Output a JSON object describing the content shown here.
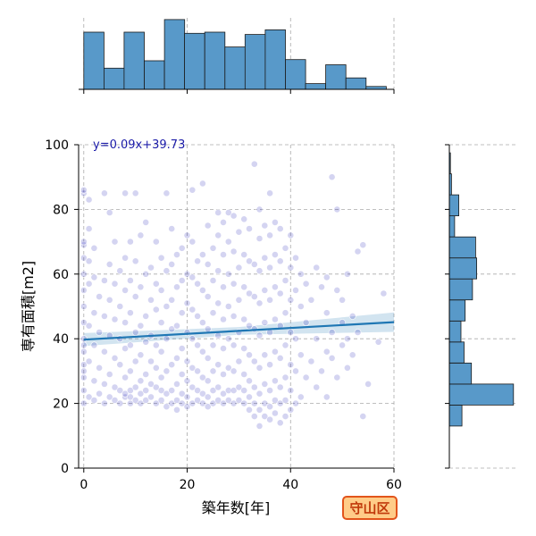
{
  "chart_data": {
    "type": "scatter",
    "title": "",
    "xlabel": "築年数[年]",
    "ylabel": "専有面積[m2]",
    "xlim": [
      -1,
      60
    ],
    "ylim": [
      0,
      100
    ],
    "xticks": [
      0,
      20,
      40,
      60
    ],
    "yticks": [
      0,
      20,
      40,
      60,
      80,
      100
    ],
    "grid": true,
    "regression": {
      "equation": "y=0.09x+39.73",
      "slope": 0.09,
      "intercept": 39.73,
      "color": "#1f77b4"
    },
    "badge": {
      "text": "守山区",
      "fill": "#ffcc88",
      "border": "#e2541b"
    },
    "point_color": "#0000aa",
    "bar_color": "#5899c9",
    "x_histogram": {
      "bin_edges": [
        0,
        3.9,
        7.8,
        11.7,
        15.6,
        19.5,
        23.4,
        27.3,
        31.2,
        35.1,
        39,
        42.9,
        46.8,
        50.7,
        54.6,
        58.5
      ],
      "counts": [
        100,
        37,
        100,
        50,
        122,
        98,
        100,
        74,
        96,
        104,
        52,
        10,
        43,
        20,
        5
      ]
    },
    "y_histogram": {
      "bin_edges": [
        13,
        19.5,
        26,
        32.5,
        39,
        45.5,
        52,
        58.5,
        65,
        71.5,
        78,
        84.5,
        91,
        97.5,
        100
      ],
      "counts": [
        12,
        61,
        21,
        14,
        11,
        15,
        22,
        26,
        25,
        5,
        9,
        2,
        1,
        0
      ]
    },
    "points": [
      [
        0,
        20
      ],
      [
        0,
        24
      ],
      [
        0,
        28
      ],
      [
        0,
        32
      ],
      [
        0,
        36
      ],
      [
        0,
        40
      ],
      [
        0,
        45
      ],
      [
        0,
        50
      ],
      [
        0,
        55
      ],
      [
        0,
        60
      ],
      [
        0,
        65
      ],
      [
        0,
        69
      ],
      [
        0,
        70
      ],
      [
        0,
        85
      ],
      [
        0,
        86
      ],
      [
        0,
        38
      ],
      [
        0,
        30
      ],
      [
        1,
        22
      ],
      [
        1,
        33
      ],
      [
        1,
        44
      ],
      [
        1,
        57
      ],
      [
        1,
        64
      ],
      [
        1,
        74
      ],
      [
        1,
        83
      ],
      [
        2,
        21
      ],
      [
        2,
        27
      ],
      [
        2,
        38
      ],
      [
        2,
        48
      ],
      [
        2,
        59
      ],
      [
        2,
        68
      ],
      [
        3,
        23
      ],
      [
        3,
        31
      ],
      [
        3,
        42
      ],
      [
        3,
        53
      ],
      [
        4,
        20
      ],
      [
        4,
        26
      ],
      [
        4,
        36
      ],
      [
        4,
        47
      ],
      [
        4,
        58
      ],
      [
        4,
        85
      ],
      [
        5,
        22
      ],
      [
        5,
        29
      ],
      [
        5,
        41
      ],
      [
        5,
        52
      ],
      [
        5,
        63
      ],
      [
        5,
        79
      ],
      [
        6,
        21
      ],
      [
        6,
        25
      ],
      [
        6,
        34
      ],
      [
        6,
        46
      ],
      [
        6,
        57
      ],
      [
        6,
        70
      ],
      [
        7,
        20
      ],
      [
        7,
        24
      ],
      [
        7,
        32
      ],
      [
        7,
        40
      ],
      [
        7,
        50
      ],
      [
        7,
        61
      ],
      [
        8,
        22
      ],
      [
        8,
        23
      ],
      [
        8,
        28
      ],
      [
        8,
        37
      ],
      [
        8,
        45
      ],
      [
        8,
        55
      ],
      [
        8,
        65
      ],
      [
        8,
        85
      ],
      [
        9,
        20
      ],
      [
        9,
        22
      ],
      [
        9,
        24
      ],
      [
        9,
        30
      ],
      [
        9,
        38
      ],
      [
        9,
        48
      ],
      [
        9,
        58
      ],
      [
        9,
        70
      ],
      [
        10,
        21
      ],
      [
        10,
        25
      ],
      [
        10,
        33
      ],
      [
        10,
        42
      ],
      [
        10,
        53
      ],
      [
        10,
        64
      ],
      [
        10,
        85
      ],
      [
        11,
        20
      ],
      [
        11,
        23
      ],
      [
        11,
        27
      ],
      [
        11,
        35
      ],
      [
        11,
        44
      ],
      [
        11,
        56
      ],
      [
        11,
        72
      ],
      [
        12,
        21
      ],
      [
        12,
        24
      ],
      [
        12,
        29
      ],
      [
        12,
        39
      ],
      [
        12,
        47
      ],
      [
        12,
        60
      ],
      [
        12,
        76
      ],
      [
        13,
        22
      ],
      [
        13,
        26
      ],
      [
        13,
        33
      ],
      [
        13,
        41
      ],
      [
        13,
        52
      ],
      [
        13,
        62
      ],
      [
        14,
        20
      ],
      [
        14,
        25
      ],
      [
        14,
        31
      ],
      [
        14,
        38
      ],
      [
        14,
        49
      ],
      [
        14,
        57
      ],
      [
        14,
        70
      ],
      [
        15,
        21
      ],
      [
        15,
        24
      ],
      [
        15,
        28
      ],
      [
        15,
        36
      ],
      [
        15,
        45
      ],
      [
        15,
        55
      ],
      [
        15,
        65
      ],
      [
        16,
        19
      ],
      [
        16,
        23
      ],
      [
        16,
        30
      ],
      [
        16,
        40
      ],
      [
        16,
        50
      ],
      [
        16,
        61
      ],
      [
        16,
        85
      ],
      [
        17,
        20
      ],
      [
        17,
        24
      ],
      [
        17,
        32
      ],
      [
        17,
        43
      ],
      [
        17,
        52
      ],
      [
        17,
        63
      ],
      [
        17,
        74
      ],
      [
        18,
        18
      ],
      [
        18,
        21
      ],
      [
        18,
        26
      ],
      [
        18,
        34
      ],
      [
        18,
        44
      ],
      [
        18,
        56
      ],
      [
        18,
        66
      ],
      [
        19,
        20
      ],
      [
        19,
        23
      ],
      [
        19,
        29
      ],
      [
        19,
        37
      ],
      [
        19,
        48
      ],
      [
        19,
        58
      ],
      [
        19,
        68
      ],
      [
        20,
        19
      ],
      [
        20,
        22
      ],
      [
        20,
        27
      ],
      [
        20,
        33
      ],
      [
        20,
        42
      ],
      [
        20,
        51
      ],
      [
        20,
        60
      ],
      [
        20,
        72
      ],
      [
        21,
        20
      ],
      [
        21,
        25
      ],
      [
        21,
        31
      ],
      [
        21,
        40
      ],
      [
        21,
        49
      ],
      [
        21,
        59
      ],
      [
        21,
        70
      ],
      [
        21,
        86
      ],
      [
        22,
        21
      ],
      [
        22,
        24
      ],
      [
        22,
        30
      ],
      [
        22,
        38
      ],
      [
        22,
        47
      ],
      [
        22,
        57
      ],
      [
        22,
        64
      ],
      [
        23,
        20
      ],
      [
        23,
        23
      ],
      [
        23,
        28
      ],
      [
        23,
        36
      ],
      [
        23,
        45
      ],
      [
        23,
        55
      ],
      [
        23,
        66
      ],
      [
        23,
        88
      ],
      [
        24,
        19
      ],
      [
        24,
        22
      ],
      [
        24,
        27
      ],
      [
        24,
        34
      ],
      [
        24,
        43
      ],
      [
        24,
        53
      ],
      [
        24,
        63
      ],
      [
        24,
        75
      ],
      [
        25,
        20
      ],
      [
        25,
        24
      ],
      [
        25,
        30
      ],
      [
        25,
        38
      ],
      [
        25,
        48
      ],
      [
        25,
        58
      ],
      [
        25,
        68
      ],
      [
        26,
        21
      ],
      [
        26,
        25
      ],
      [
        26,
        32
      ],
      [
        26,
        41
      ],
      [
        26,
        51
      ],
      [
        26,
        61
      ],
      [
        26,
        72
      ],
      [
        26,
        79
      ],
      [
        27,
        20
      ],
      [
        27,
        23
      ],
      [
        27,
        29
      ],
      [
        27,
        37
      ],
      [
        27,
        46
      ],
      [
        27,
        56
      ],
      [
        27,
        66
      ],
      [
        27,
        76
      ],
      [
        28,
        21
      ],
      [
        28,
        24
      ],
      [
        28,
        31
      ],
      [
        28,
        40
      ],
      [
        28,
        50
      ],
      [
        28,
        60
      ],
      [
        28,
        70
      ],
      [
        28,
        79
      ],
      [
        29,
        20
      ],
      [
        29,
        24
      ],
      [
        29,
        30
      ],
      [
        29,
        38
      ],
      [
        29,
        47
      ],
      [
        29,
        57
      ],
      [
        29,
        67
      ],
      [
        29,
        78
      ],
      [
        30,
        21
      ],
      [
        30,
        25
      ],
      [
        30,
        33
      ],
      [
        30,
        42
      ],
      [
        30,
        52
      ],
      [
        30,
        62
      ],
      [
        30,
        73
      ],
      [
        31,
        20
      ],
      [
        31,
        24
      ],
      [
        31,
        29
      ],
      [
        31,
        37
      ],
      [
        31,
        46
      ],
      [
        31,
        56
      ],
      [
        31,
        66
      ],
      [
        31,
        77
      ],
      [
        32,
        18
      ],
      [
        32,
        22
      ],
      [
        32,
        27
      ],
      [
        32,
        35
      ],
      [
        32,
        44
      ],
      [
        32,
        54
      ],
      [
        32,
        64
      ],
      [
        32,
        74
      ],
      [
        33,
        16
      ],
      [
        33,
        20
      ],
      [
        33,
        25
      ],
      [
        33,
        33
      ],
      [
        33,
        43
      ],
      [
        33,
        53
      ],
      [
        33,
        63
      ],
      [
        33,
        94
      ],
      [
        34,
        13
      ],
      [
        34,
        18
      ],
      [
        34,
        23
      ],
      [
        34,
        31
      ],
      [
        34,
        41
      ],
      [
        34,
        51
      ],
      [
        34,
        61
      ],
      [
        34,
        71
      ],
      [
        34,
        80
      ],
      [
        35,
        16
      ],
      [
        35,
        20
      ],
      [
        35,
        26
      ],
      [
        35,
        35
      ],
      [
        35,
        45
      ],
      [
        35,
        55
      ],
      [
        35,
        65
      ],
      [
        35,
        75
      ],
      [
        36,
        15
      ],
      [
        36,
        19
      ],
      [
        36,
        24
      ],
      [
        36,
        32
      ],
      [
        36,
        42
      ],
      [
        36,
        52
      ],
      [
        36,
        62
      ],
      [
        36,
        72
      ],
      [
        36,
        85
      ],
      [
        37,
        17
      ],
      [
        37,
        21
      ],
      [
        37,
        27
      ],
      [
        37,
        36
      ],
      [
        37,
        46
      ],
      [
        37,
        56
      ],
      [
        37,
        66
      ],
      [
        37,
        76
      ],
      [
        38,
        14
      ],
      [
        38,
        20
      ],
      [
        38,
        25
      ],
      [
        38,
        34
      ],
      [
        38,
        44
      ],
      [
        38,
        54
      ],
      [
        38,
        64
      ],
      [
        38,
        74
      ],
      [
        39,
        16
      ],
      [
        39,
        21
      ],
      [
        39,
        28
      ],
      [
        39,
        38
      ],
      [
        39,
        48
      ],
      [
        39,
        58
      ],
      [
        39,
        68
      ],
      [
        40,
        18
      ],
      [
        40,
        24
      ],
      [
        40,
        32
      ],
      [
        40,
        42
      ],
      [
        40,
        52
      ],
      [
        40,
        62
      ],
      [
        40,
        72
      ],
      [
        41,
        20
      ],
      [
        41,
        30
      ],
      [
        41,
        40
      ],
      [
        41,
        55
      ],
      [
        41,
        65
      ],
      [
        42,
        22
      ],
      [
        42,
        35
      ],
      [
        42,
        50
      ],
      [
        42,
        60
      ],
      [
        43,
        28
      ],
      [
        43,
        45
      ],
      [
        43,
        57
      ],
      [
        44,
        33
      ],
      [
        44,
        52
      ],
      [
        45,
        25
      ],
      [
        45,
        40
      ],
      [
        45,
        62
      ],
      [
        46,
        30
      ],
      [
        46,
        56
      ],
      [
        47,
        22
      ],
      [
        47,
        36
      ],
      [
        47,
        48
      ],
      [
        47,
        59
      ],
      [
        48,
        34
      ],
      [
        48,
        42
      ],
      [
        48,
        90
      ],
      [
        49,
        80
      ],
      [
        49,
        55
      ],
      [
        49,
        28
      ],
      [
        50,
        38
      ],
      [
        50,
        45
      ],
      [
        50,
        52
      ],
      [
        51,
        40
      ],
      [
        51,
        31
      ],
      [
        51,
        60
      ],
      [
        52,
        35
      ],
      [
        52,
        47
      ],
      [
        53,
        67
      ],
      [
        53,
        42
      ],
      [
        54,
        16
      ],
      [
        54,
        69
      ],
      [
        55,
        26
      ],
      [
        57,
        39
      ],
      [
        58,
        54
      ]
    ]
  }
}
